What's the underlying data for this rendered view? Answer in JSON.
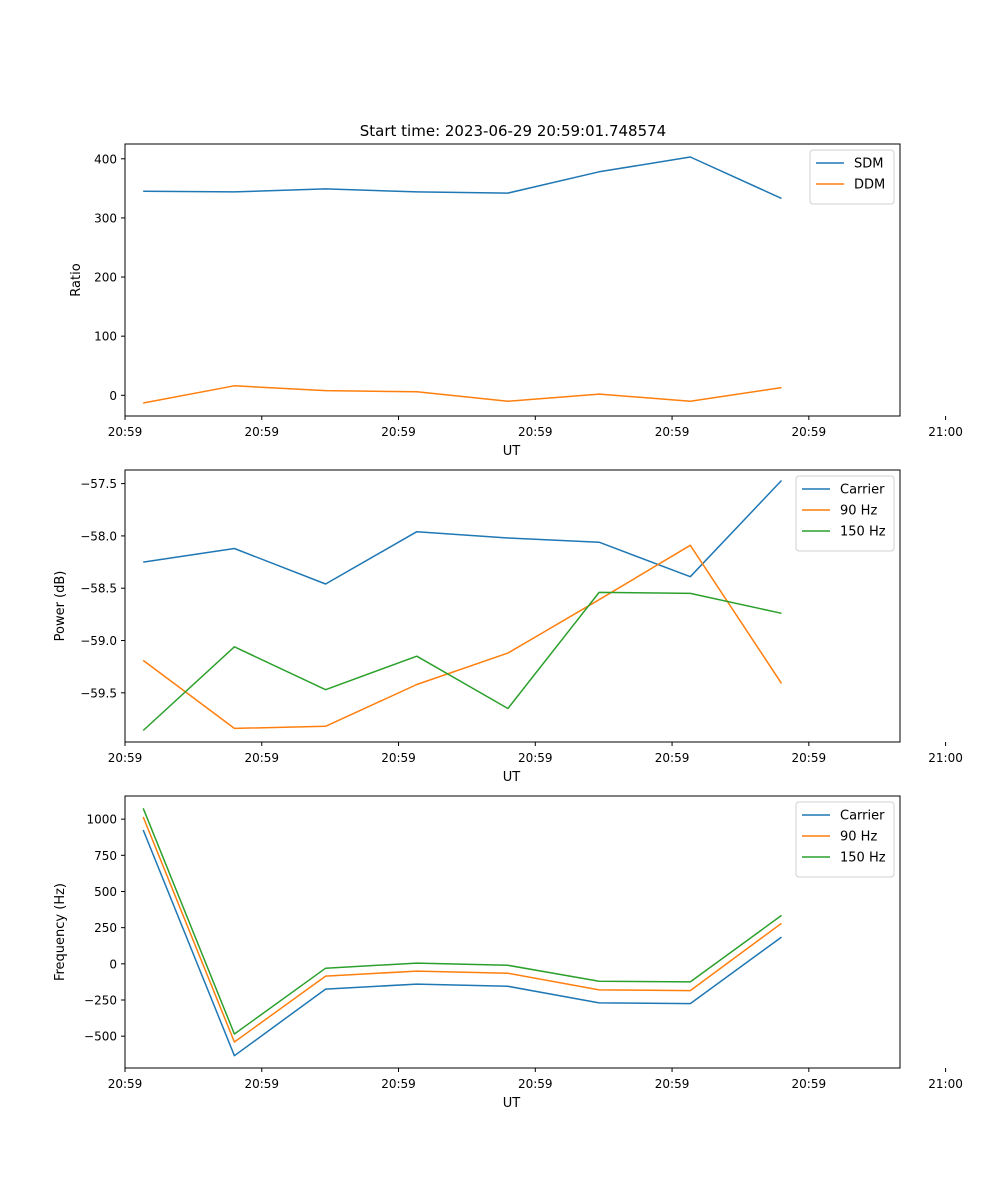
{
  "figure": {
    "title": "Start time: 2023-06-29 20:59:01.748574"
  },
  "colors": {
    "blue": "#1f77b4",
    "orange": "#ff7f0e",
    "green": "#2ca02c"
  },
  "chart_data": [
    {
      "type": "line",
      "title": "Start time: 2023-06-29 20:59:01.748574",
      "xlabel": "UT",
      "ylabel": "Ratio",
      "x": [
        1,
        2,
        3,
        4,
        5,
        6,
        7,
        8
      ],
      "xlim": [
        0.8,
        9.3
      ],
      "x_ticks": [
        {
          "value": 0.8,
          "label": "20:59"
        },
        {
          "value": 2.3,
          "label": "20:59"
        },
        {
          "value": 3.8,
          "label": "20:59"
        },
        {
          "value": 5.3,
          "label": "20:59"
        },
        {
          "value": 6.8,
          "label": "20:59"
        },
        {
          "value": 8.3,
          "label": "20:59"
        },
        {
          "value": 9.8,
          "label": "21:00"
        }
      ],
      "ylim": [
        -35,
        425
      ],
      "y_ticks": [
        {
          "value": 0,
          "label": "0"
        },
        {
          "value": 100,
          "label": "100"
        },
        {
          "value": 200,
          "label": "200"
        },
        {
          "value": 300,
          "label": "300"
        },
        {
          "value": 400,
          "label": "400"
        }
      ],
      "legend": "top-right",
      "grid": false,
      "series": [
        {
          "name": "SDM",
          "color": "#1f77b4",
          "values": [
            345,
            344,
            349,
            344,
            342,
            378,
            403,
            333
          ]
        },
        {
          "name": "DDM",
          "color": "#ff7f0e",
          "values": [
            -13,
            16,
            8,
            6,
            -10,
            2,
            -10,
            13
          ]
        }
      ]
    },
    {
      "type": "line",
      "title": "",
      "xlabel": "UT",
      "ylabel": "Power (dB)",
      "x": [
        1,
        2,
        3,
        4,
        5,
        6,
        7,
        8
      ],
      "xlim": [
        0.8,
        9.3
      ],
      "x_ticks": [
        {
          "value": 0.8,
          "label": "20:59"
        },
        {
          "value": 2.3,
          "label": "20:59"
        },
        {
          "value": 3.8,
          "label": "20:59"
        },
        {
          "value": 5.3,
          "label": "20:59"
        },
        {
          "value": 6.8,
          "label": "20:59"
        },
        {
          "value": 8.3,
          "label": "20:59"
        },
        {
          "value": 9.8,
          "label": "21:00"
        }
      ],
      "ylim": [
        -59.97,
        -57.37
      ],
      "y_ticks": [
        {
          "value": -59.5,
          "label": "−59.5"
        },
        {
          "value": -59.0,
          "label": "−59.0"
        },
        {
          "value": -58.5,
          "label": "−58.5"
        },
        {
          "value": -58.0,
          "label": "−58.0"
        },
        {
          "value": -57.5,
          "label": "−57.5"
        }
      ],
      "legend": "top-right",
      "grid": false,
      "series": [
        {
          "name": "Carrier",
          "color": "#1f77b4",
          "values": [
            -58.25,
            -58.12,
            -58.46,
            -57.96,
            -58.02,
            -58.06,
            -58.39,
            -57.47
          ]
        },
        {
          "name": "90 Hz",
          "color": "#ff7f0e",
          "values": [
            -59.19,
            -59.84,
            -59.82,
            -59.42,
            -59.12,
            -58.61,
            -58.09,
            -59.41
          ]
        },
        {
          "name": "150 Hz",
          "color": "#2ca02c",
          "values": [
            -59.86,
            -59.06,
            -59.47,
            -59.15,
            -59.65,
            -58.54,
            -58.55,
            -58.74
          ]
        }
      ]
    },
    {
      "type": "line",
      "title": "",
      "xlabel": "UT",
      "ylabel": "Frequency (Hz)",
      "x": [
        1,
        2,
        3,
        4,
        5,
        6,
        7,
        8
      ],
      "xlim": [
        0.8,
        9.3
      ],
      "x_ticks": [
        {
          "value": 0.8,
          "label": "20:59"
        },
        {
          "value": 2.3,
          "label": "20:59"
        },
        {
          "value": 3.8,
          "label": "20:59"
        },
        {
          "value": 5.3,
          "label": "20:59"
        },
        {
          "value": 6.8,
          "label": "20:59"
        },
        {
          "value": 8.3,
          "label": "20:59"
        },
        {
          "value": 9.8,
          "label": "21:00"
        }
      ],
      "ylim": [
        -720,
        1160
      ],
      "y_ticks": [
        {
          "value": -500,
          "label": "−500"
        },
        {
          "value": -250,
          "label": "−250"
        },
        {
          "value": 0,
          "label": "0"
        },
        {
          "value": 250,
          "label": "250"
        },
        {
          "value": 500,
          "label": "500"
        },
        {
          "value": 750,
          "label": "750"
        },
        {
          "value": 1000,
          "label": "1000"
        }
      ],
      "legend": "top-right",
      "grid": false,
      "series": [
        {
          "name": "Carrier",
          "color": "#1f77b4",
          "values": [
            925,
            -635,
            -175,
            -140,
            -155,
            -270,
            -275,
            185
          ]
        },
        {
          "name": "90 Hz",
          "color": "#ff7f0e",
          "values": [
            1015,
            -540,
            -85,
            -50,
            -65,
            -180,
            -185,
            280
          ]
        },
        {
          "name": "150 Hz",
          "color": "#2ca02c",
          "values": [
            1075,
            -485,
            -30,
            5,
            -10,
            -120,
            -125,
            335
          ]
        }
      ]
    }
  ]
}
